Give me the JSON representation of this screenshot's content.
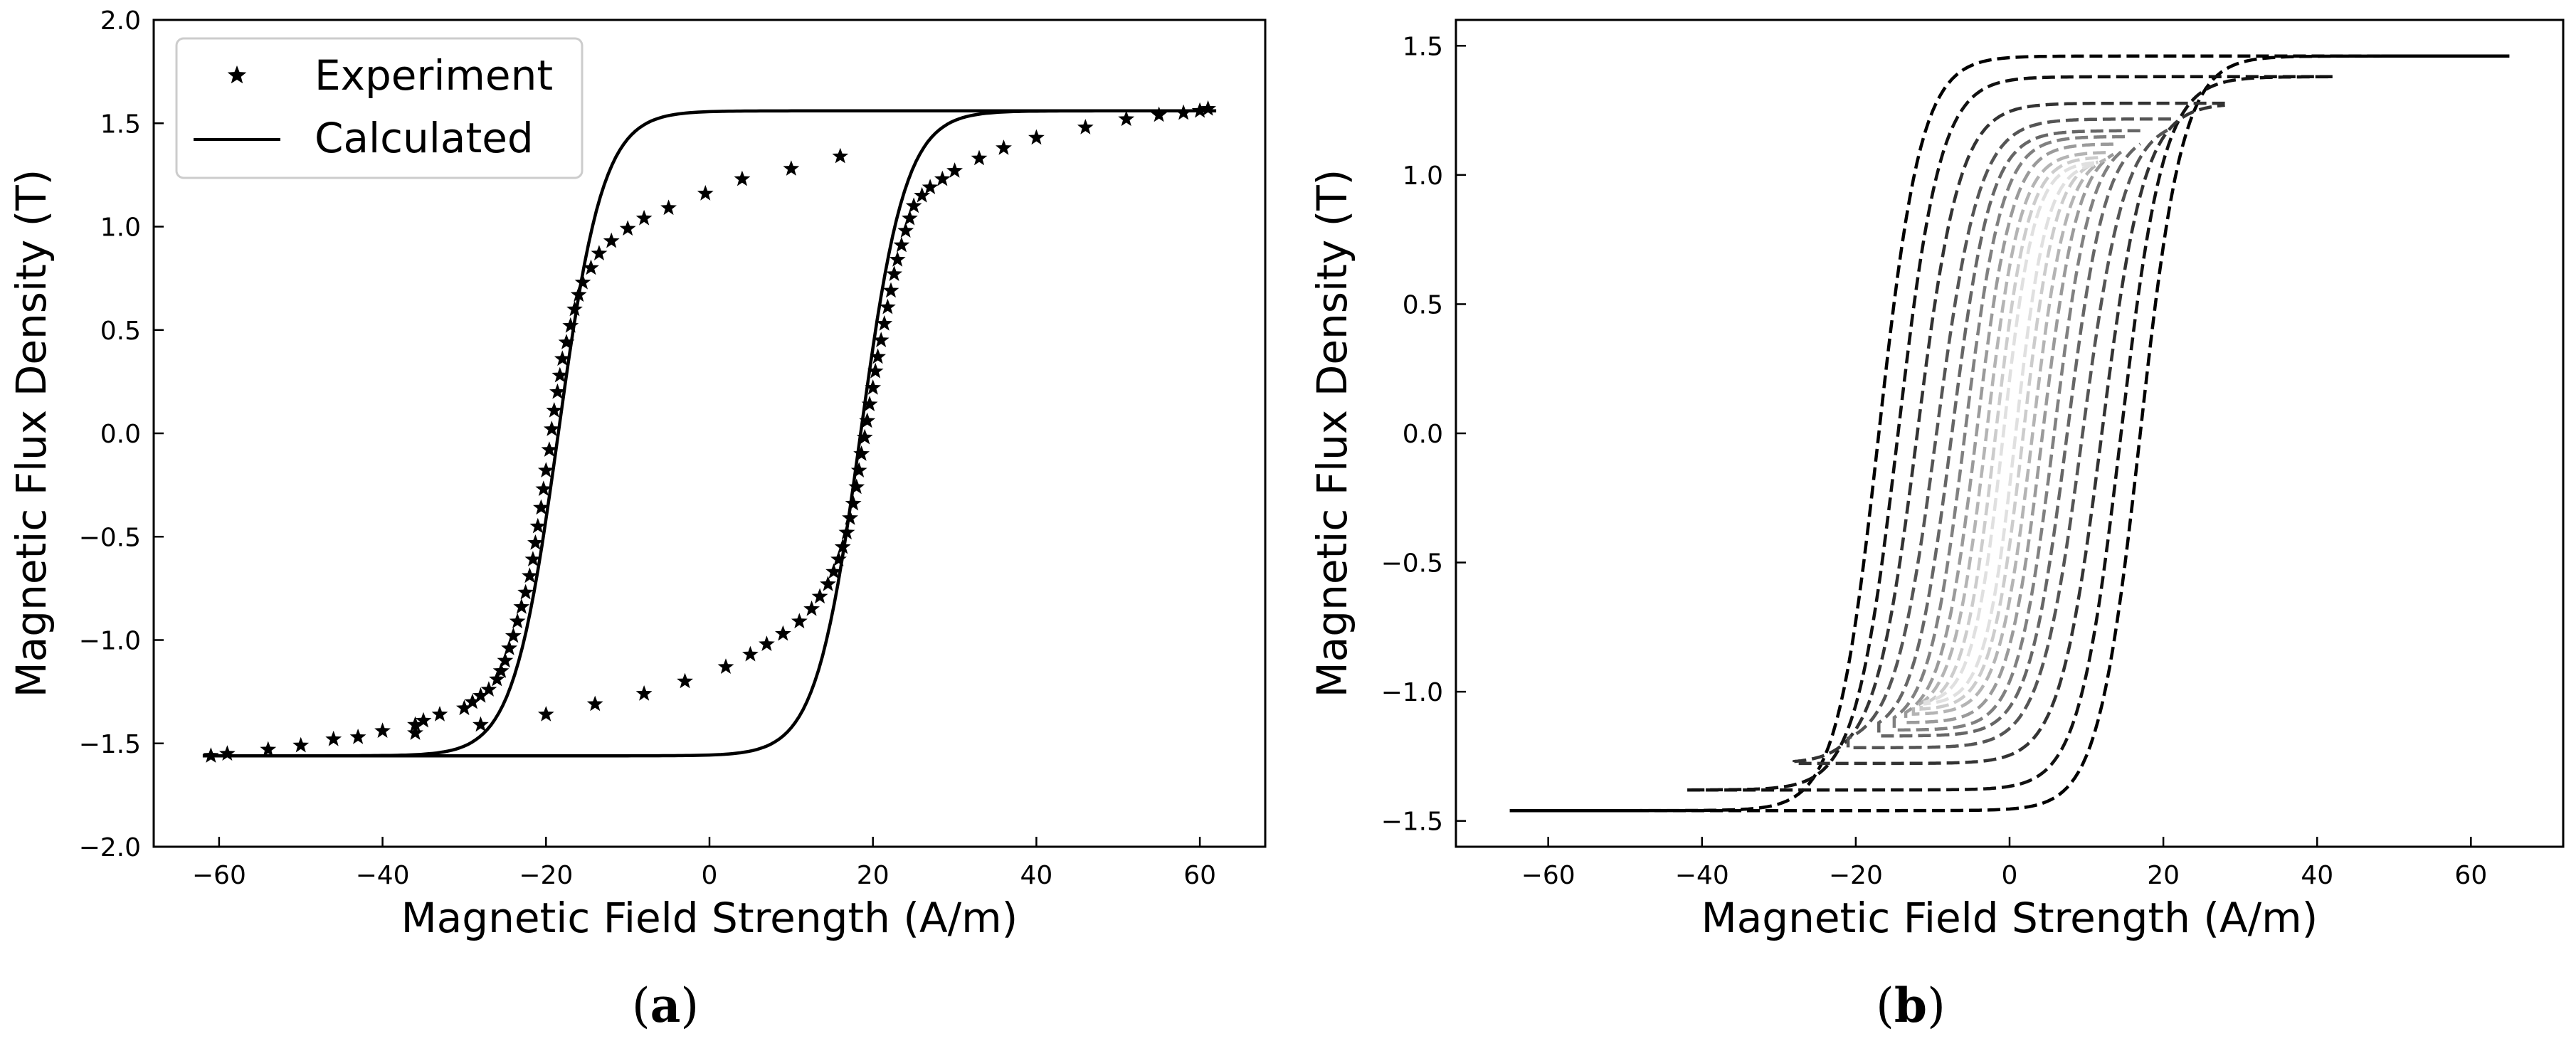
{
  "chart_data": [
    {
      "id": "a",
      "type": "line",
      "caption": {
        "open": "(",
        "letter": "a",
        "close": ")"
      },
      "xlabel": "Magnetic Field Strength (A/m)",
      "ylabel": "Magnetic Flux Density (T)",
      "xlim": [
        -68,
        68
      ],
      "ylim": [
        -2.0,
        2.0
      ],
      "xticks": [
        -60,
        -40,
        -20,
        0,
        20,
        40,
        60
      ],
      "xtick_labels": [
        "−60",
        "−40",
        "−20",
        "0",
        "20",
        "40",
        "60"
      ],
      "yticks": [
        -2.0,
        -1.5,
        -1.0,
        -0.5,
        0.0,
        0.5,
        1.0,
        1.5,
        2.0
      ],
      "ytick_labels": [
        "−2.0",
        "−1.5",
        "−1.0",
        "−0.5",
        "0.0",
        "0.5",
        "1.0",
        "1.5",
        "2.0"
      ],
      "legend": {
        "position": "top-left",
        "entries": [
          "Experiment",
          "Calculated"
        ]
      },
      "series": [
        {
          "name": "Calculated",
          "style": "solid",
          "color": "#000000",
          "loop": {
            "Hmax": 62,
            "Bmax": 1.56,
            "Hc": 18.5,
            "w": 5.5
          }
        },
        {
          "name": "Experiment",
          "style": "star-markers",
          "color": "#000000",
          "points": [
            [
              -61,
              -1.56
            ],
            [
              -59,
              -1.55
            ],
            [
              -54,
              -1.53
            ],
            [
              -50,
              -1.51
            ],
            [
              -46,
              -1.48
            ],
            [
              -43,
              -1.47
            ],
            [
              -40,
              -1.44
            ],
            [
              -36,
              -1.41
            ],
            [
              -35,
              -1.39
            ],
            [
              -33,
              -1.36
            ],
            [
              -30,
              -1.33
            ],
            [
              -29,
              -1.3
            ],
            [
              -28,
              -1.27
            ],
            [
              -27,
              -1.24
            ],
            [
              -26,
              -1.19
            ],
            [
              -25.5,
              -1.15
            ],
            [
              -25,
              -1.1
            ],
            [
              -24.5,
              -1.04
            ],
            [
              -24,
              -0.98
            ],
            [
              -23.5,
              -0.91
            ],
            [
              -23,
              -0.84
            ],
            [
              -22.5,
              -0.77
            ],
            [
              -22,
              -0.69
            ],
            [
              -21.6,
              -0.61
            ],
            [
              -21.3,
              -0.53
            ],
            [
              -21,
              -0.45
            ],
            [
              -20.6,
              -0.36
            ],
            [
              -20.3,
              -0.27
            ],
            [
              -20,
              -0.18
            ],
            [
              -19.6,
              -0.08
            ],
            [
              -19.3,
              0.02
            ],
            [
              -19,
              0.11
            ],
            [
              -18.6,
              0.2
            ],
            [
              -18.3,
              0.28
            ],
            [
              -18,
              0.36
            ],
            [
              -17.5,
              0.44
            ],
            [
              -17,
              0.52
            ],
            [
              -16.5,
              0.6
            ],
            [
              -16,
              0.67
            ],
            [
              -15.5,
              0.73
            ],
            [
              -14.5,
              0.8
            ],
            [
              -13.5,
              0.87
            ],
            [
              -12,
              0.93
            ],
            [
              -10,
              0.99
            ],
            [
              -8,
              1.04
            ],
            [
              -5,
              1.09
            ],
            [
              -0.5,
              1.16
            ],
            [
              4,
              1.23
            ],
            [
              10,
              1.28
            ],
            [
              16,
              1.34
            ],
            [
              -36,
              -1.45
            ],
            [
              -28,
              -1.41
            ],
            [
              -20,
              -1.36
            ],
            [
              -14,
              -1.31
            ],
            [
              -8,
              -1.26
            ],
            [
              -3,
              -1.2
            ],
            [
              2,
              -1.13
            ],
            [
              5,
              -1.07
            ],
            [
              7,
              -1.02
            ],
            [
              9,
              -0.97
            ],
            [
              11,
              -0.91
            ],
            [
              12.5,
              -0.85
            ],
            [
              13.5,
              -0.79
            ],
            [
              14.5,
              -0.73
            ],
            [
              15.2,
              -0.67
            ],
            [
              15.8,
              -0.61
            ],
            [
              16.3,
              -0.55
            ],
            [
              16.8,
              -0.48
            ],
            [
              17.2,
              -0.41
            ],
            [
              17.6,
              -0.34
            ],
            [
              18,
              -0.26
            ],
            [
              18.3,
              -0.18
            ],
            [
              18.6,
              -0.1
            ],
            [
              19,
              -0.02
            ],
            [
              19.3,
              0.06
            ],
            [
              19.6,
              0.14
            ],
            [
              20,
              0.22
            ],
            [
              20.3,
              0.3
            ],
            [
              20.6,
              0.37
            ],
            [
              21,
              0.45
            ],
            [
              21.4,
              0.53
            ],
            [
              21.8,
              0.61
            ],
            [
              22.2,
              0.69
            ],
            [
              22.6,
              0.77
            ],
            [
              23,
              0.84
            ],
            [
              23.5,
              0.91
            ],
            [
              24,
              0.98
            ],
            [
              24.5,
              1.04
            ],
            [
              25,
              1.1
            ],
            [
              26,
              1.15
            ],
            [
              27,
              1.19
            ],
            [
              28.5,
              1.23
            ],
            [
              30,
              1.27
            ],
            [
              33,
              1.33
            ],
            [
              36,
              1.38
            ],
            [
              40,
              1.43
            ],
            [
              46,
              1.48
            ],
            [
              51,
              1.52
            ],
            [
              55,
              1.54
            ],
            [
              58,
              1.55
            ],
            [
              60,
              1.56
            ],
            [
              61,
              1.57
            ]
          ]
        }
      ]
    },
    {
      "id": "b",
      "type": "line",
      "caption": {
        "open": "(",
        "letter": "b",
        "close": ")"
      },
      "xlabel": "Magnetic Field Strength (A/m)",
      "ylabel": "Magnetic Flux Density (T)",
      "xlim": [
        -72,
        72
      ],
      "ylim": [
        -1.6,
        1.6
      ],
      "xticks": [
        -60,
        -40,
        -20,
        0,
        20,
        40,
        60
      ],
      "xtick_labels": [
        "−60",
        "−40",
        "−20",
        "0",
        "20",
        "40",
        "60"
      ],
      "yticks": [
        -1.5,
        -1.0,
        -0.5,
        0.0,
        0.5,
        1.0,
        1.5
      ],
      "ytick_labels": [
        "−1.5",
        "−1.0",
        "−0.5",
        "0.0",
        "0.5",
        "1.0",
        "1.5"
      ],
      "series": [
        {
          "name": "loop-1",
          "style": "dashed",
          "color": "#000000",
          "loop": {
            "Hmax": 65,
            "Bmax": 1.46,
            "Hc": 17,
            "w": 5.5
          }
        },
        {
          "name": "loop-2",
          "style": "dashed",
          "color": "#111111",
          "loop": {
            "Hmax": 42,
            "Bmax": 1.38,
            "Hc": 14.5,
            "w": 5.5
          }
        },
        {
          "name": "loop-3",
          "style": "dashed",
          "color": "#333333",
          "loop": {
            "Hmax": 28,
            "Bmax": 1.27,
            "Hc": 12,
            "w": 5.5
          }
        },
        {
          "name": "loop-4",
          "style": "dashed",
          "color": "#555555",
          "loop": {
            "Hmax": 21,
            "Bmax": 1.18,
            "Hc": 9.5,
            "w": 5.5
          }
        },
        {
          "name": "loop-5",
          "style": "dashed",
          "color": "#666666",
          "loop": {
            "Hmax": 17,
            "Bmax": 1.12,
            "Hc": 7.5,
            "w": 5.0
          }
        },
        {
          "name": "loop-6",
          "style": "dashed",
          "color": "#808080",
          "loop": {
            "Hmax": 15,
            "Bmax": 1.1,
            "Hc": 5.8,
            "w": 4.8
          }
        },
        {
          "name": "loop-7",
          "style": "dashed",
          "color": "#9a9a9a",
          "loop": {
            "Hmax": 13.5,
            "Bmax": 1.08,
            "Hc": 4.3,
            "w": 4.6
          }
        },
        {
          "name": "loop-8",
          "style": "dashed",
          "color": "#b4b4b4",
          "loop": {
            "Hmax": 12.5,
            "Bmax": 1.06,
            "Hc": 3.0,
            "w": 4.4
          }
        },
        {
          "name": "loop-9",
          "style": "dashed",
          "color": "#cccccc",
          "loop": {
            "Hmax": 11.5,
            "Bmax": 1.05,
            "Hc": 1.8,
            "w": 4.2
          }
        },
        {
          "name": "loop-10",
          "style": "dashed",
          "color": "#e0e0e0",
          "loop": {
            "Hmax": 11,
            "Bmax": 1.04,
            "Hc": 0.8,
            "w": 4.0
          }
        }
      ]
    }
  ]
}
